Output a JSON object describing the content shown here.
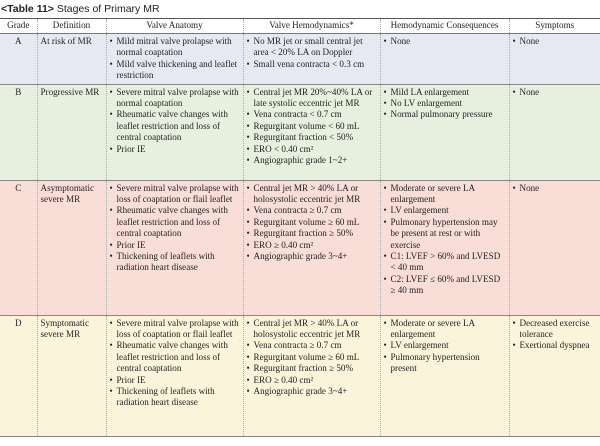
{
  "caption": {
    "tag": "<Table 11>",
    "title": "Stages of Primary MR"
  },
  "headers": [
    "Grade",
    "Definition",
    "Valve Anatomy",
    "Valve Hemodynamics*",
    "Hemodynamic Consequences",
    "Symptoms"
  ],
  "rows": [
    {
      "grade": "A",
      "definition": "At risk of MR",
      "anatomy": [
        "Mild mitral valve prolapse with normal coaptation",
        "Mild valve thickening and leaflet restriction"
      ],
      "hemodynamics": [
        "No MR jet or small central jet area < 20% LA on Doppler",
        "Small vena contracta < 0.3 cm"
      ],
      "consequences": [
        "None"
      ],
      "symptoms": [
        "None"
      ]
    },
    {
      "grade": "B",
      "definition": "Progressive MR",
      "anatomy": [
        "Severe mitral valve prolapse with normal coaptation",
        "Rheumatic valve changes with leaflet restriction and loss of central coaptation",
        "Prior IE"
      ],
      "hemodynamics": [
        "Central jet MR 20%~40% LA or late systolic eccentric jet MR",
        "Vena contracta < 0.7 cm",
        "Regurgitant volume < 60 mL",
        "Regurgitant fraction < 50%",
        "ERO < 0.40 cm²",
        "Angiographic grade 1~2+"
      ],
      "consequences": [
        "Mild LA enlargement",
        "No LV enlargement",
        "Normal pulmonary pressure"
      ],
      "symptoms": [
        "None"
      ]
    },
    {
      "grade": "C",
      "definition": "Asymptomatic severe MR",
      "anatomy": [
        "Severe mitral valve prolapse with loss of coaptation or flail leaflet",
        "Rheumatic valve changes with leaflet restriction and loss of central coaptation",
        "Prior IE",
        "Thickening of leaflets with radiation heart disease"
      ],
      "hemodynamics": [
        "Central jet MR > 40% LA or holosystolic eccentric jet MR",
        "Vena contracta ≥ 0.7 cm",
        "Regurgitant volume ≥ 60 mL",
        "Regurgitant fraction ≥ 50%",
        "ERO ≥ 0.40 cm²",
        "Angiographic grade 3~4+"
      ],
      "consequences": [
        "Moderate or severe LA enlargement",
        "LV enlargement",
        "Pulmonary hypertension may be present at rest or with exercise",
        "C1: LVEF > 60% and LVESD < 40 mm",
        "C2: LVEF ≤ 60% and LVESD ≥ 40 mm"
      ],
      "symptoms": [
        "None"
      ]
    },
    {
      "grade": "D",
      "definition": "Symptomatic severe MR",
      "anatomy": [
        "Severe mitral valve prolapse with loss of coaptation or flail leaflet",
        "Rheumatic valve changes with leaflet restriction and loss of central coaptation",
        "Prior IE",
        "Thickening of leaflets with radiation heart disease"
      ],
      "hemodynamics": [
        "Central jet MR > 40% LA or holosystolic eccentric jet MR",
        "Vena contracta ≥ 0.7 cm",
        "Regurgitant volume ≥ 60 mL",
        "Regurgitant fraction ≥ 50%",
        "ERO ≥ 0.40 cm²",
        "Angiographic grade 3~4+"
      ],
      "consequences": [
        "Moderate or severe LA enlargement",
        "LV enlargement",
        "Pulmonary hypertension present"
      ],
      "symptoms": [
        "Decreased exercise tolerance",
        "Exertional dyspnea"
      ]
    }
  ]
}
